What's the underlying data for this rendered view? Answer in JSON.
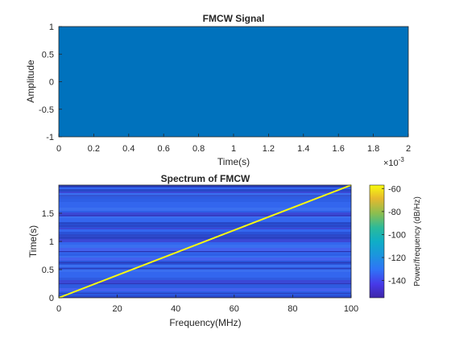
{
  "colors": {
    "signal": "#0072BD",
    "axis": "#262626",
    "ridge": "#F9FB0E"
  },
  "chart_data": [
    {
      "type": "line",
      "title": "FMCW Signal",
      "xlabel": "Time(s)",
      "ylabel": "Amplitude",
      "xlim": [
        0,
        0.002
      ],
      "ylim": [
        -1,
        1
      ],
      "x_exponent_label": "×10^{-3}",
      "x_exponent_base": "×10",
      "x_exponent_power": "-3",
      "xticks": [
        "0",
        "0.2",
        "0.4",
        "0.6",
        "0.8",
        "1",
        "1.2",
        "1.4",
        "1.6",
        "1.8",
        "2"
      ],
      "yticks": [
        "-1",
        "-0.5",
        "0",
        "0.5",
        "1"
      ],
      "grid": false,
      "series": [
        {
          "description_of_data": "chirp oscillating between -1 and 1 across entire 0–2 ms span (fills plot area)",
          "envelope_min": -1,
          "envelope_max": 1
        }
      ]
    },
    {
      "type": "heatmap",
      "title": "Spectrum of FMCW",
      "xlabel": "Frequency(MHz)",
      "ylabel": "Time(s)",
      "xlim": [
        0,
        100
      ],
      "ylim": [
        0,
        2
      ],
      "xticks": [
        "0",
        "20",
        "40",
        "60",
        "80",
        "100"
      ],
      "yticks": [
        "0",
        "0.5",
        "1",
        "1.5"
      ],
      "ridge": {
        "from": [
          0,
          0
        ],
        "to": [
          100,
          2
        ]
      },
      "colorbar": {
        "label": "Power/frequency (dB/Hz)",
        "range": [
          -155,
          -57
        ],
        "ticks": [
          "-60",
          "-80",
          "-100",
          "-120",
          "-140"
        ],
        "tick_values": [
          -60,
          -80,
          -100,
          -120,
          -140
        ],
        "colormap": "parula"
      }
    }
  ]
}
